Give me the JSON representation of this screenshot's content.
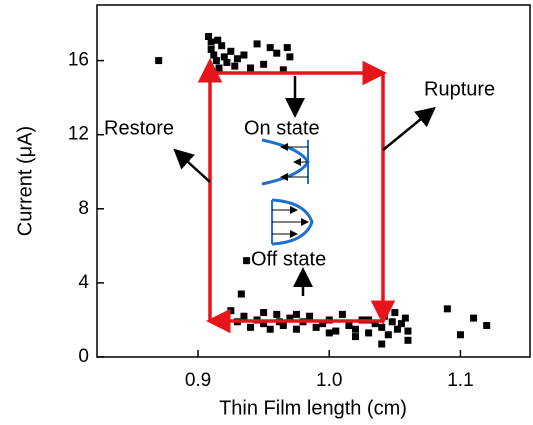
{
  "chart_data": {
    "type": "scatter",
    "xlabel": "Thin Film length (cm)",
    "ylabel": "Current (μA)",
    "annotations": [
      "Rupture",
      "Restore",
      "On state",
      "Off state"
    ],
    "color": "#000000",
    "xlim": [
      0.823,
      1.153
    ],
    "ylim": [
      0,
      19
    ],
    "xticks": [
      0.9,
      {
        "value": 1,
        "label": "1.0"
      },
      1.1
    ],
    "yticks": [
      0,
      4,
      8,
      12,
      16
    ],
    "x": [
      0.87,
      0.908,
      0.91,
      0.91,
      0.912,
      0.915,
      0.914,
      0.916,
      0.918,
      0.92,
      0.922,
      0.925,
      0.928,
      0.93,
      0.935,
      0.94,
      0.945,
      0.95,
      0.955,
      0.96,
      0.965,
      0.968,
      0.97,
      0.937,
      0.925,
      0.933,
      0.93,
      0.935,
      0.94,
      0.945,
      0.95,
      0.955,
      0.96,
      0.962,
      0.965,
      0.97,
      0.975,
      0.98,
      0.985,
      0.99,
      0.995,
      1.0,
      1.005,
      1.01,
      1.015,
      1.02,
      1.025,
      1.03,
      1.035,
      1.04,
      1.042,
      1.045,
      1.048,
      1.05,
      1.052,
      1.055,
      1.058,
      1.06,
      1.04,
      1.06,
      1.09,
      1.1,
      1.11,
      1.12,
      0.95,
      0.975,
      1.0,
      1.02,
      1.03
    ],
    "values": [
      16.0,
      17.3,
      17.0,
      16.6,
      16.3,
      17.1,
      16.0,
      15.6,
      16.8,
      16.2,
      15.9,
      16.5,
      15.7,
      16.1,
      16.3,
      15.6,
      16.9,
      15.8,
      16.7,
      16.4,
      15.5,
      16.7,
      16.2,
      5.2,
      2.5,
      3.4,
      1.9,
      2.2,
      1.6,
      2.0,
      1.8,
      1.5,
      2.3,
      1.9,
      1.7,
      2.1,
      1.5,
      1.9,
      2.2,
      1.6,
      1.8,
      2.0,
      1.4,
      2.3,
      1.7,
      1.5,
      2.0,
      1.3,
      1.8,
      1.6,
      2.2,
      1.2,
      1.9,
      2.4,
      1.5,
      1.8,
      2.1,
      1.4,
      0.7,
      0.9,
      2.6,
      1.2,
      2.1,
      1.7,
      2.4,
      2.3,
      1.3,
      1.1,
      2.0
    ]
  }
}
